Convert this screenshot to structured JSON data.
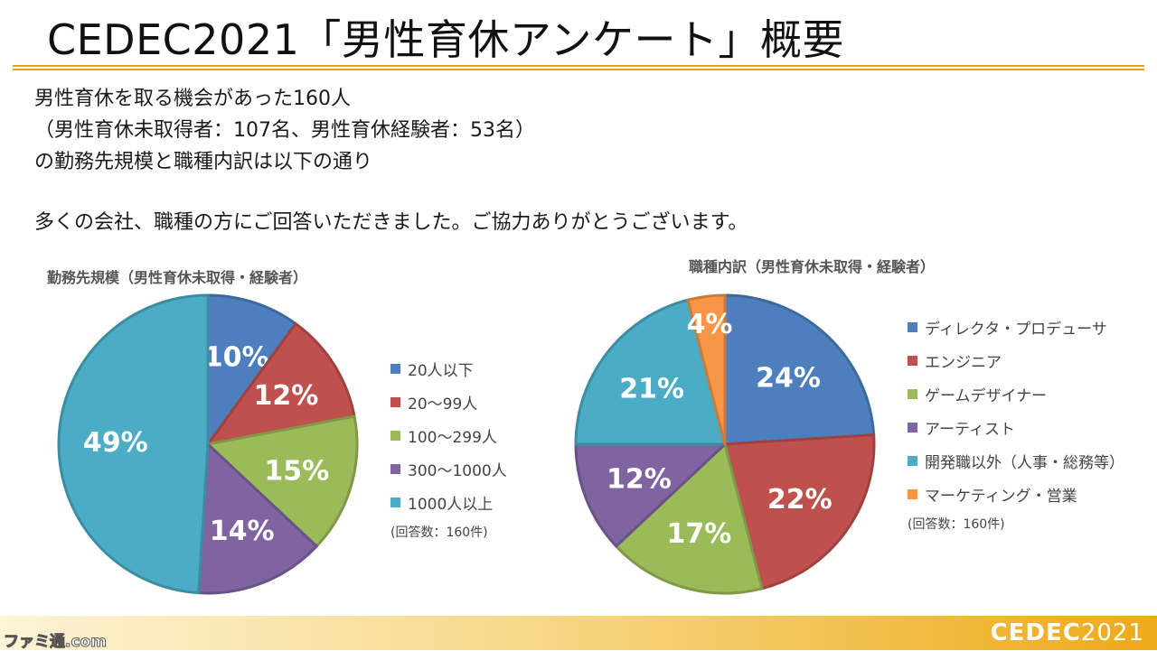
{
  "slide": {
    "title": "CEDEC2021「男性育休アンケート」概要",
    "intro_lines": [
      "男性育休を取る機会があった160人",
      "（男性育休未取得者：107名、男性育休経験者：53名）",
      "の勤務先規模と職種内訳は以下の通り"
    ],
    "thanks": "多くの会社、職種の方にご回答いただきました。ご協力ありがとうございます。",
    "footer_logo": "CEDEC",
    "footer_year": "2021",
    "watermark": "ファミ通.com"
  },
  "chart_data": [
    {
      "type": "pie",
      "title": "勤務先規模（男性育休未取得・経験者）",
      "categories": [
        "20人以下",
        "20～99人",
        "100～299人",
        "300～1000人",
        "1000人以上"
      ],
      "values": [
        10,
        12,
        15,
        14,
        49
      ],
      "labels": [
        "10%",
        "12%",
        "15%",
        "14%",
        "49%"
      ],
      "colors": [
        "#4d7fbf",
        "#c0504d",
        "#9bbb59",
        "#8064a2",
        "#4bacc6"
      ],
      "note": "(回答数：160件)",
      "legend": "right"
    },
    {
      "type": "pie",
      "title": "職種内訳（男性育休未取得・経験者）",
      "categories": [
        "ディレクタ・プロデューサ",
        "エンジニア",
        "ゲームデザイナー",
        "アーティスト",
        "開発職以外（人事・総務等）",
        "マーケティング・営業"
      ],
      "values": [
        24,
        22,
        17,
        12,
        21,
        4
      ],
      "labels": [
        "24%",
        "22%",
        "17%",
        "12%",
        "21%",
        "4%"
      ],
      "colors": [
        "#4d7fbf",
        "#c0504d",
        "#9bbb59",
        "#8064a2",
        "#4bacc6",
        "#f79646"
      ],
      "note": "(回答数：160件)",
      "legend": "right"
    }
  ]
}
